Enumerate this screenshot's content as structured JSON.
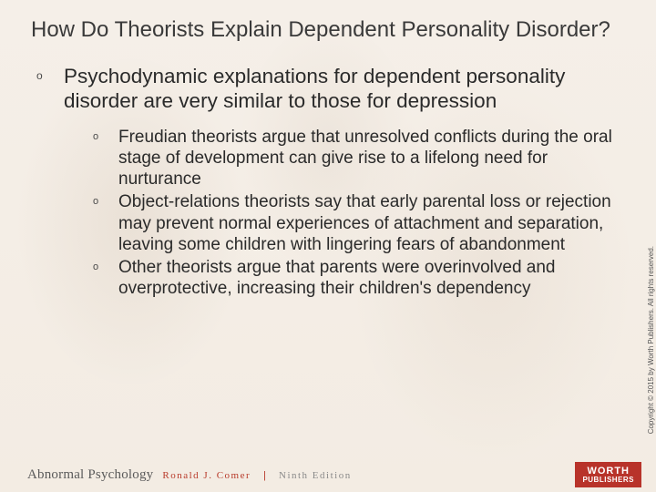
{
  "colors": {
    "background": "#f5efe8",
    "title_text": "#3a3a3a",
    "body_text": "#2a2a2a",
    "accent_red": "#b83a2a",
    "badge_red": "#b8332a",
    "muted": "#8a8a8a",
    "copyright_text": "#555555"
  },
  "typography": {
    "title_fontsize": 24,
    "main_fontsize": 22.5,
    "sub_fontsize": 19,
    "footer_title_fontsize": 15,
    "footer_meta_fontsize": 11,
    "copyright_fontsize": 8
  },
  "title": "How Do Theorists Explain Dependent Personality Disorder?",
  "main": {
    "bullet_glyph": "o",
    "text": "Psychodynamic explanations for dependent personality disorder are very similar to those for depression",
    "subs": [
      {
        "text": "Freudian theorists argue that unresolved conflicts during the oral stage of development can give rise to a lifelong need for nurturance"
      },
      {
        "text": "Object-relations theorists say that early parental loss or rejection may prevent normal experiences of attachment and separation, leaving some children with lingering fears of abandonment"
      },
      {
        "text": "Other theorists argue that parents were overinvolved and overprotective, increasing their children's dependency"
      }
    ]
  },
  "copyright": "Copyright © 2015 by Worth Publishers. All rights reserved.",
  "footer": {
    "book_title": "Abnormal Psychology",
    "author": "Ronald J. Comer",
    "divider": "|",
    "edition": "Ninth Edition",
    "publisher_line1": "WORTH",
    "publisher_line2": "PUBLISHERS"
  }
}
